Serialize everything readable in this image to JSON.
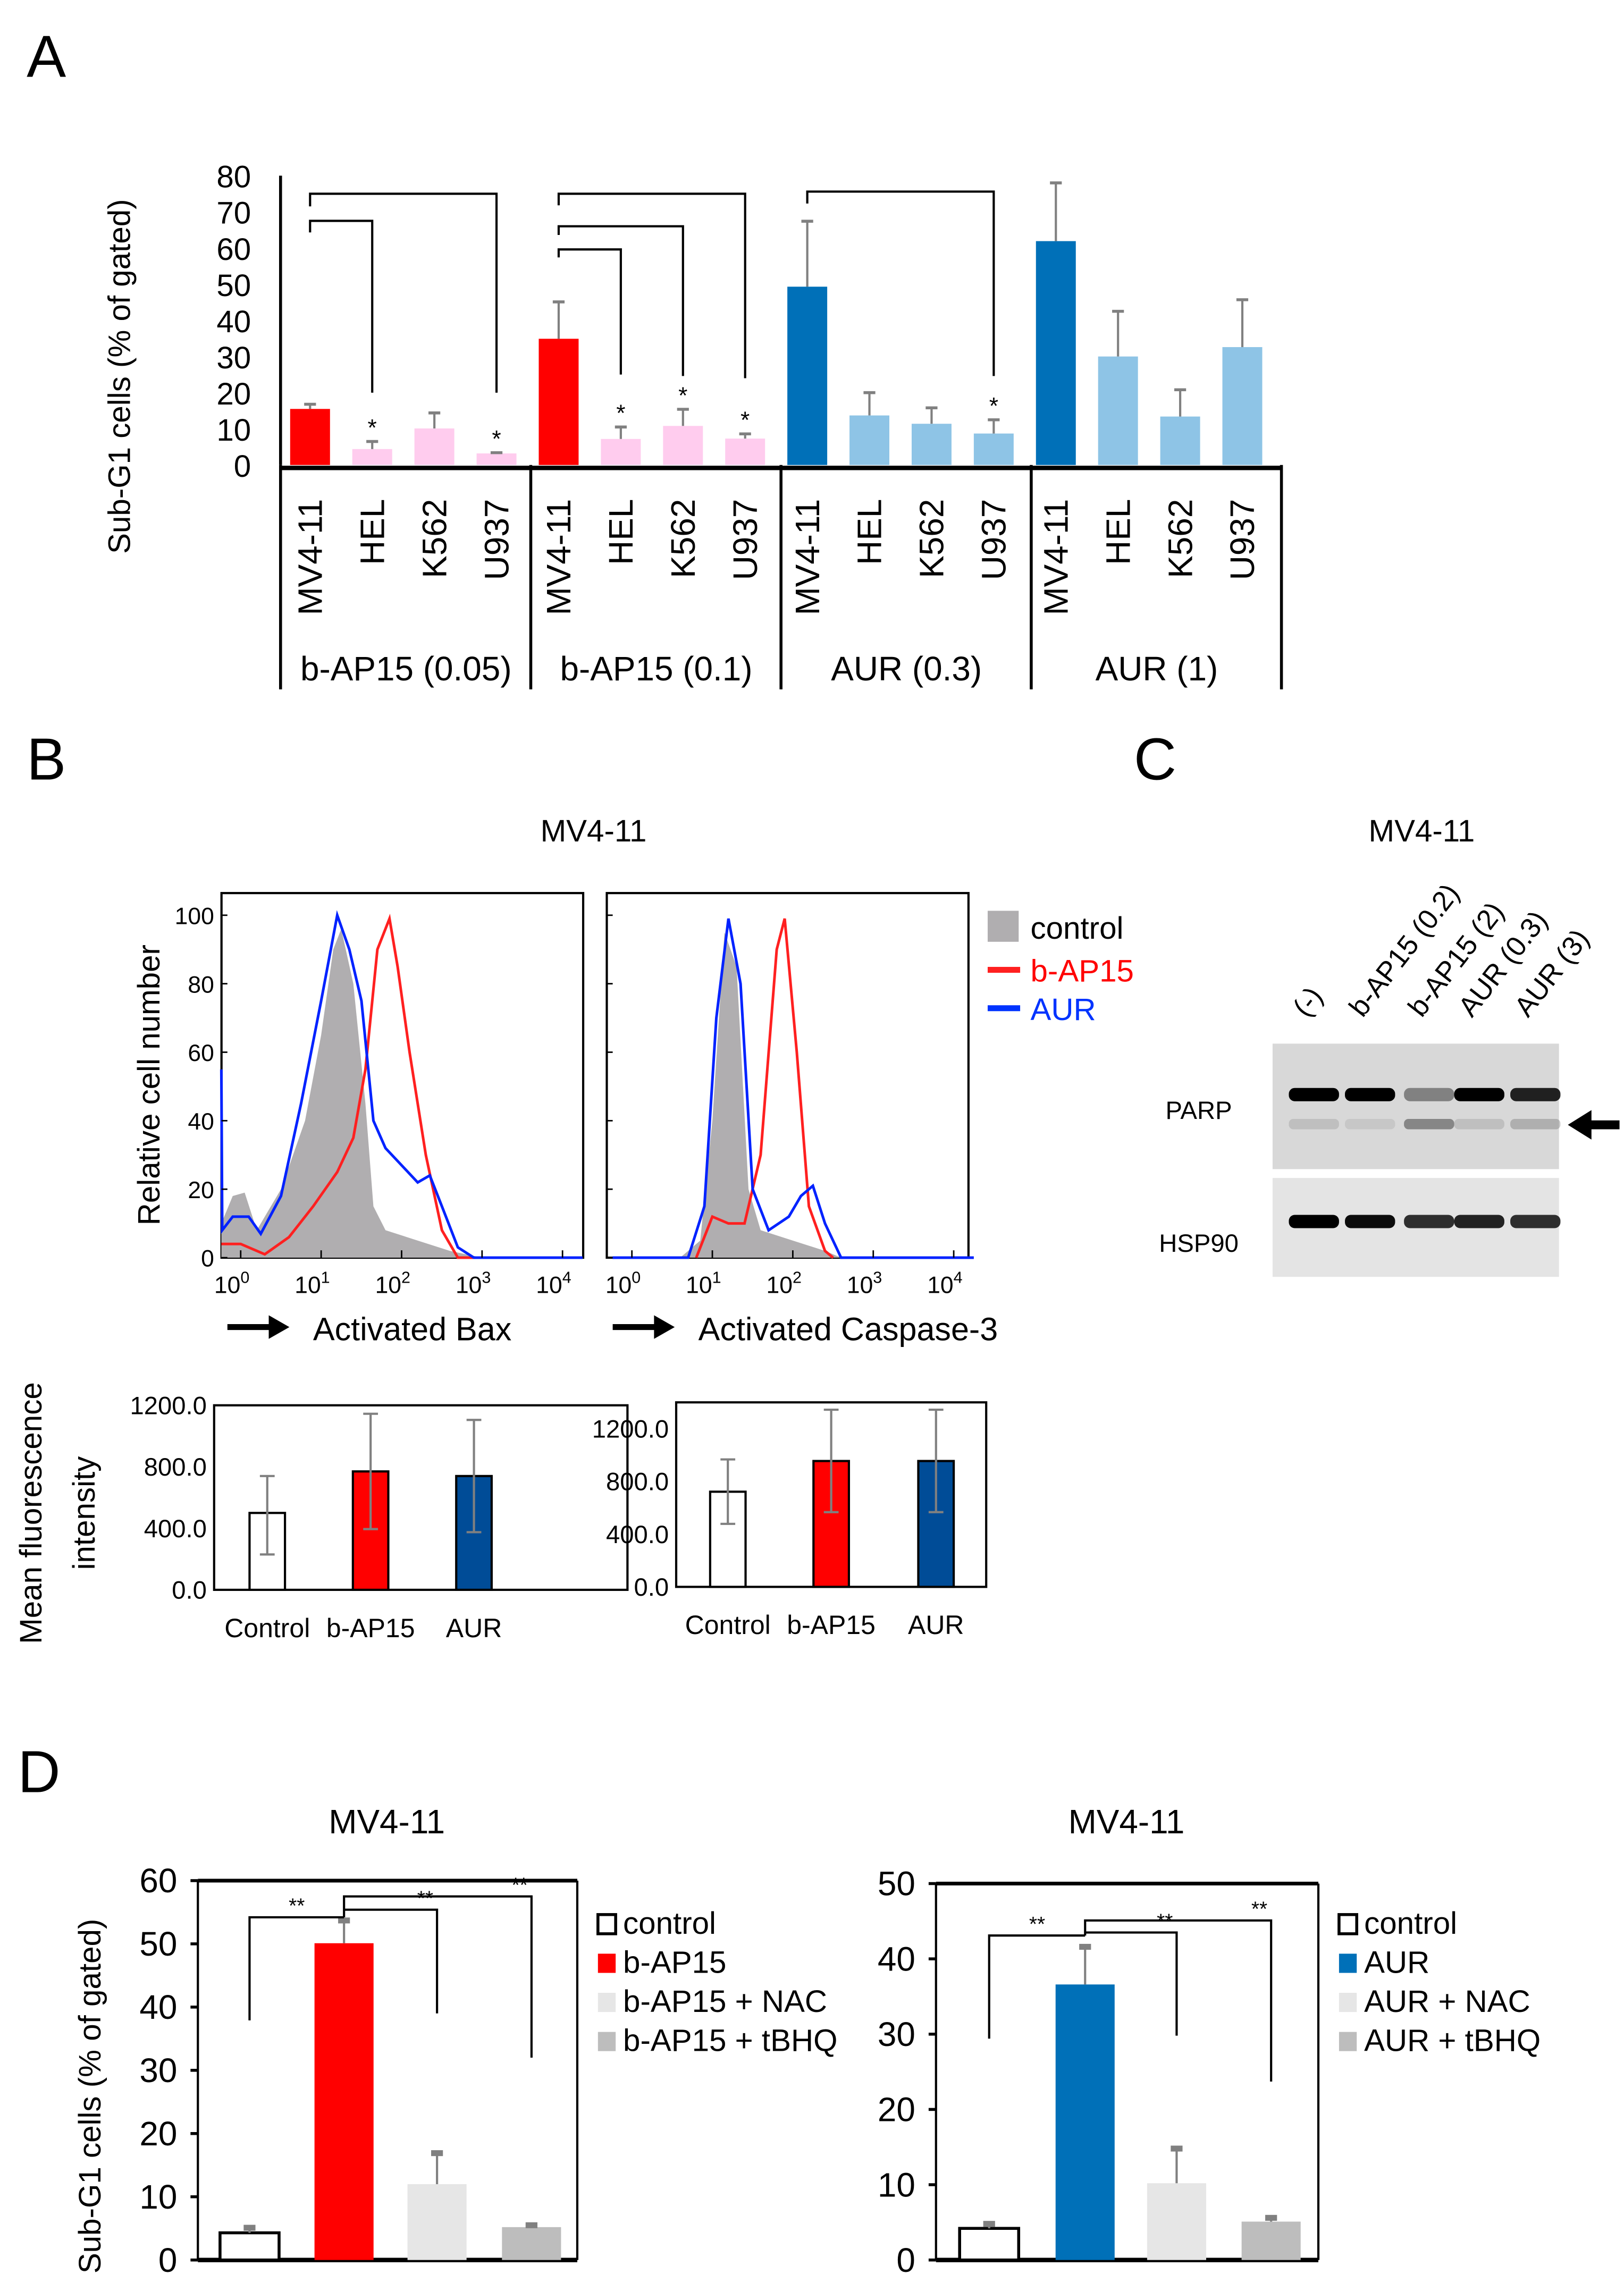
{
  "panels": {
    "A": "A",
    "B": "B",
    "C": "C",
    "D": "D"
  },
  "colors": {
    "red": "#ff0000",
    "pink": "#ffccee",
    "blue": "#0070b8",
    "lightblue": "#8ec4e6",
    "control_gray": "#b0b0b0",
    "aur_blue": "#0033ff",
    "nac": "#e6e6e6",
    "tbhq": "#bdbdbd",
    "dark_blue": "#004c97"
  },
  "chart_data": [
    {
      "id": "A",
      "type": "bar",
      "ylabel": "Sub-G1 cells (% of gated)",
      "ylim": [
        0,
        80
      ],
      "yticks": [
        "0",
        "10",
        "20",
        "30",
        "40",
        "50",
        "60",
        "70",
        "80"
      ],
      "groups": [
        {
          "label": "b-AP15 (0.05)",
          "categories": [
            "MV4-11",
            "HEL",
            "K562",
            "U937"
          ],
          "values": [
            15.5,
            4.4,
            10.1,
            3.2
          ],
          "err_upper": [
            16.8,
            6.5,
            14.4,
            3.4
          ],
          "colors": [
            "#ff0000",
            "#ffccee",
            "#ffccee",
            "#ffccee"
          ],
          "stars": [
            "",
            "*",
            "",
            "*"
          ],
          "brackets": [
            {
              "from": 0,
              "to": 3,
              "level": 75,
              "left_end": 71.5,
              "right_end": 20
            },
            {
              "from": 0,
              "to": 1,
              "level": 67.5,
              "left_end": 64.3,
              "right_end": 20
            }
          ]
        },
        {
          "label": "b-AP15 (0.1)",
          "categories": [
            "MV4-11",
            "HEL",
            "K562",
            "U937"
          ],
          "values": [
            34.9,
            7.2,
            10.8,
            7.3
          ],
          "err_upper": [
            45.1,
            10.5,
            15.4,
            8.6
          ],
          "colors": [
            "#ff0000",
            "#ffccee",
            "#ffccee",
            "#ffccee"
          ],
          "stars": [
            "",
            "*",
            "*",
            "*"
          ],
          "brackets": [
            {
              "from": 0,
              "to": 3,
              "level": 75,
              "left_end": 71.8,
              "right_end": 24
            },
            {
              "from": 0,
              "to": 2,
              "level": 66,
              "left_end": 63.6,
              "right_end": 24.6
            },
            {
              "from": 0,
              "to": 1,
              "level": 59.6,
              "left_end": 57.4,
              "right_end": 25
            }
          ]
        },
        {
          "label": "AUR (0.3)",
          "categories": [
            "MV4-11",
            "HEL",
            "K562",
            "U937"
          ],
          "values": [
            49.3,
            13.7,
            11.4,
            8.7
          ],
          "err_upper": [
            67.4,
            20,
            15.8,
            12.5
          ],
          "colors": [
            "#0070b8",
            "#8ec4e6",
            "#8ec4e6",
            "#8ec4e6"
          ],
          "stars": [
            "",
            "",
            "",
            "*"
          ],
          "brackets": [
            {
              "from": 0,
              "to": 3,
              "level": 75.6,
              "left_end": 72.3,
              "right_end": 24.6
            }
          ]
        },
        {
          "label": "AUR (1)",
          "categories": [
            "MV4-11",
            "HEL",
            "K562",
            "U937"
          ],
          "values": [
            61.9,
            30,
            13.4,
            32.6
          ],
          "err_upper": [
            78,
            42.5,
            20.8,
            45.7
          ],
          "colors": [
            "#0070b8",
            "#8ec4e6",
            "#8ec4e6",
            "#8ec4e6"
          ],
          "stars": [
            "",
            "",
            "",
            ""
          ],
          "brackets": []
        }
      ]
    },
    {
      "id": "B-hist",
      "type": "line",
      "title": "MV4-11",
      "ylabel": "Relative cell number",
      "yticks": [
        "0",
        "20",
        "40",
        "60",
        "80",
        "100"
      ],
      "xticks_exp": [
        "0",
        "1",
        "2",
        "3",
        "4"
      ],
      "xtick_base": "10",
      "legend": [
        "control",
        "b-AP15",
        "AUR"
      ],
      "plots": [
        {
          "xlabel": "Activated Bax",
          "control": [
            [
              -0.24,
              10
            ],
            [
              -0.1,
              18
            ],
            [
              0.05,
              19
            ],
            [
              0.2,
              8
            ],
            [
              0.5,
              20
            ],
            [
              0.8,
              40
            ],
            [
              1.0,
              65
            ],
            [
              1.15,
              90
            ],
            [
              1.25,
              96
            ],
            [
              1.4,
              80
            ],
            [
              1.55,
              45
            ],
            [
              1.65,
              15
            ],
            [
              1.8,
              8
            ],
            [
              2.2,
              5
            ],
            [
              2.6,
              2
            ],
            [
              3,
              0
            ]
          ],
          "b-AP15": [
            [
              -0.24,
              4
            ],
            [
              0,
              4
            ],
            [
              0.3,
              1
            ],
            [
              0.6,
              6
            ],
            [
              0.9,
              15
            ],
            [
              1.2,
              25
            ],
            [
              1.4,
              35
            ],
            [
              1.55,
              55
            ],
            [
              1.7,
              90
            ],
            [
              1.85,
              99
            ],
            [
              1.95,
              85
            ],
            [
              2.1,
              60
            ],
            [
              2.3,
              30
            ],
            [
              2.5,
              8
            ],
            [
              2.7,
              0
            ],
            [
              4.25,
              0
            ]
          ],
          "AUR": [
            [
              -0.24,
              55
            ],
            [
              -0.23,
              8
            ],
            [
              -0.1,
              12
            ],
            [
              0.1,
              12
            ],
            [
              0.25,
              7
            ],
            [
              0.5,
              18
            ],
            [
              0.75,
              45
            ],
            [
              1.0,
              75
            ],
            [
              1.2,
              100
            ],
            [
              1.35,
              90
            ],
            [
              1.5,
              75
            ],
            [
              1.65,
              40
            ],
            [
              1.8,
              32
            ],
            [
              2.0,
              27
            ],
            [
              2.2,
              22
            ],
            [
              2.35,
              24
            ],
            [
              2.5,
              15
            ],
            [
              2.7,
              3
            ],
            [
              2.9,
              0
            ],
            [
              4.25,
              0
            ]
          ]
        },
        {
          "xlabel": "Activated Caspase-3",
          "control": [
            [
              0.6,
              0
            ],
            [
              0.85,
              5
            ],
            [
              1.0,
              40
            ],
            [
              1.15,
              95
            ],
            [
              1.3,
              85
            ],
            [
              1.45,
              20
            ],
            [
              1.6,
              8
            ],
            [
              2.0,
              5
            ],
            [
              2.4,
              2
            ],
            [
              2.6,
              0
            ]
          ],
          "b-AP15": [
            [
              0.8,
              0
            ],
            [
              1.0,
              12
            ],
            [
              1.2,
              10
            ],
            [
              1.4,
              10
            ],
            [
              1.6,
              30
            ],
            [
              1.8,
              90
            ],
            [
              1.9,
              99
            ],
            [
              2.05,
              60
            ],
            [
              2.2,
              15
            ],
            [
              2.4,
              2
            ],
            [
              2.5,
              0
            ]
          ],
          "AUR": [
            [
              -0.24,
              0
            ],
            [
              0.7,
              0
            ],
            [
              0.9,
              15
            ],
            [
              1.05,
              70
            ],
            [
              1.2,
              99
            ],
            [
              1.35,
              80
            ],
            [
              1.5,
              20
            ],
            [
              1.7,
              8
            ],
            [
              1.95,
              12
            ],
            [
              2.1,
              18
            ],
            [
              2.25,
              21
            ],
            [
              2.4,
              10
            ],
            [
              2.6,
              0
            ],
            [
              4.25,
              0
            ]
          ]
        }
      ]
    },
    {
      "id": "B-mfi",
      "type": "bar",
      "ylabel": [
        "Mean fluorescence",
        "intensity"
      ],
      "charts": [
        {
          "ylim": [
            0,
            1200
          ],
          "yticks": [
            "0.0",
            "400.0",
            "800.0",
            "1200.0"
          ],
          "categories": [
            "Control",
            "b-AP15",
            "AUR"
          ],
          "values": [
            500,
            770,
            740
          ],
          "err_upper": [
            740,
            1145,
            1105
          ],
          "err_lower": [
            230,
            395,
            375
          ]
        },
        {
          "ylim": [
            0,
            1400
          ],
          "yticks": [
            "0.0",
            "400.0",
            "800.0",
            "1200.0"
          ],
          "categories": [
            "Control",
            "b-AP15",
            "AUR"
          ],
          "values": [
            722,
            955,
            955
          ],
          "err_upper": [
            967,
            1344,
            1344
          ],
          "err_lower": [
            478,
            567,
            567
          ]
        }
      ]
    },
    {
      "id": "D",
      "type": "bar",
      "ylabel": "Sub-G1 cells (% of gated)",
      "charts": [
        {
          "title": "MV4-11",
          "ylim": [
            0,
            60
          ],
          "yticks": [
            "0",
            "10",
            "20",
            "30",
            "40",
            "50",
            "60"
          ],
          "legend": [
            "control",
            "b-AP15",
            "b-AP15 + NAC",
            "b-AP15 + tBHQ"
          ],
          "values": [
            4.3,
            50.1,
            12.0,
            5.2
          ],
          "err_upper": [
            5.1,
            53.7,
            16.9,
            5.5
          ],
          "brackets": [
            {
              "from": 0,
              "to": 1,
              "level": 54.2,
              "left_end": 37.9,
              "right_end": 54.2,
              "label": "**"
            },
            {
              "from": 1,
              "to": 2,
              "level": 55.4,
              "left_end": 55.4,
              "right_end": 39,
              "label": "**"
            },
            {
              "from": 1,
              "to": 3,
              "level": 57.5,
              "left_end": 54.2,
              "right_end": 32,
              "label": "**"
            }
          ]
        },
        {
          "title": "MV4-11",
          "ylim": [
            0,
            50
          ],
          "yticks": [
            "0",
            "10",
            "20",
            "30",
            "40",
            "50"
          ],
          "legend": [
            "control",
            "AUR",
            "AUR + NAC",
            "AUR + tBHQ"
          ],
          "values": [
            4.2,
            36.6,
            10.2,
            5.1
          ],
          "err_upper": [
            4.8,
            41.6,
            14.8,
            5.6
          ],
          "brackets": [
            {
              "from": 0,
              "to": 1,
              "level": 43.1,
              "left_end": 29.4,
              "right_end": 43.1,
              "label": "**"
            },
            {
              "from": 1,
              "to": 2,
              "level": 43.5,
              "left_end": 43.5,
              "right_end": 29.8,
              "label": "**"
            },
            {
              "from": 1,
              "to": 3,
              "level": 45.1,
              "left_end": 43.1,
              "right_end": 23.7,
              "label": "**"
            }
          ]
        }
      ]
    }
  ],
  "blot": {
    "title": "MV4-11",
    "lanes": [
      "(-)",
      "b-AP15 (0.2)",
      "b-AP15 (2)",
      "AUR (0.3)",
      "AUR (3)"
    ],
    "rows": [
      "PARP",
      "HSP90"
    ],
    "parp_intensity": [
      1,
      1,
      0.4,
      1,
      0.85
    ],
    "cleaved_intensity": [
      0.15,
      0.1,
      0.5,
      0.15,
      0.25
    ],
    "hsp90_intensity": [
      1,
      0.95,
      0.8,
      0.85,
      0.8
    ]
  }
}
